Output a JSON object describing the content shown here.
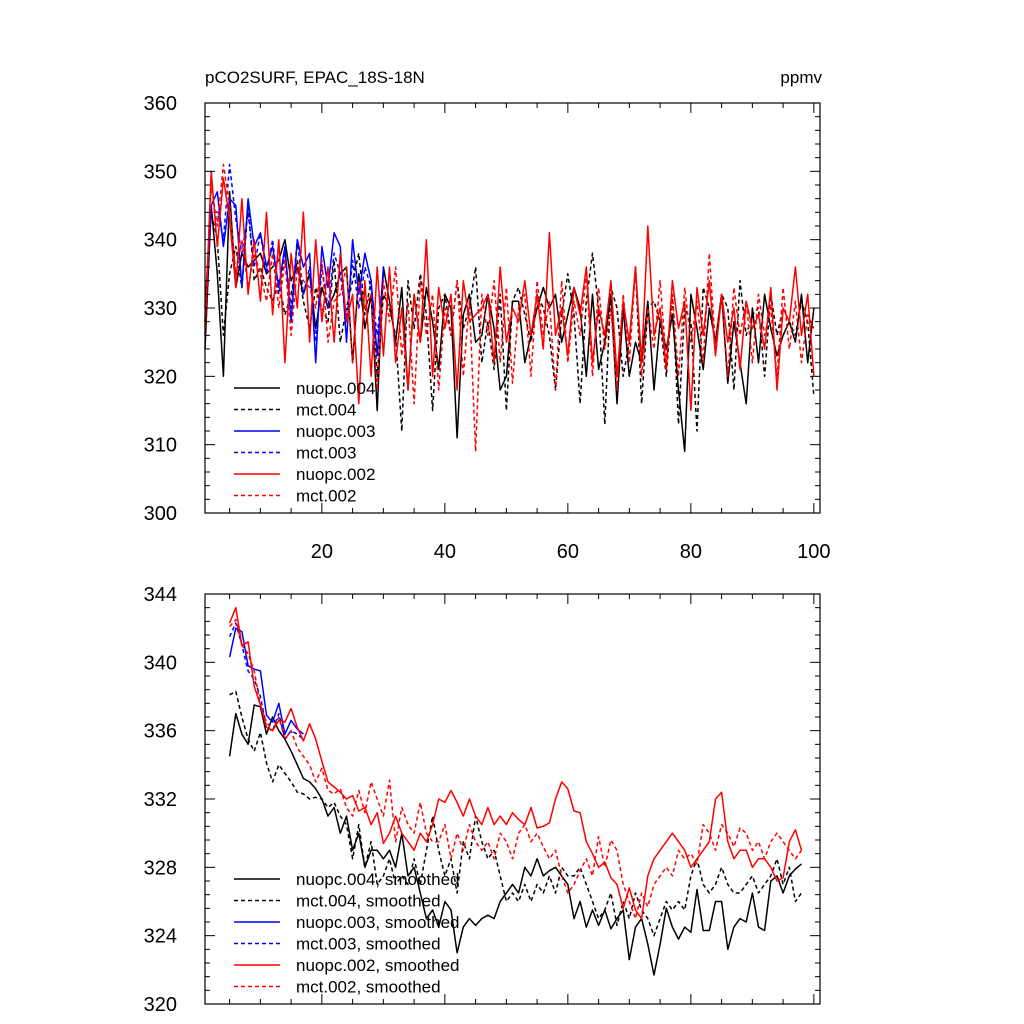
{
  "chart_data": [
    {
      "id": "raw",
      "type": "line",
      "title_left": "pCO2SURF, EPAC_18S-18N",
      "title_right": "ppmv",
      "xlim": [
        1,
        101
      ],
      "ylim": [
        300,
        360
      ],
      "xticks": [
        20,
        40,
        60,
        80,
        100
      ],
      "yticks": [
        300,
        310,
        320,
        330,
        340,
        350,
        360
      ],
      "x_tick_labels_shown": true,
      "legend_position": "bottom-left",
      "series": [
        {
          "name": "nuopc.004",
          "color": "#000000",
          "dash": "solid",
          "x_start": 1,
          "values": [
            324,
            345,
            335,
            320,
            347,
            333,
            338,
            336,
            337,
            338,
            335,
            336,
            337,
            340,
            334,
            336,
            332,
            335,
            327,
            333,
            330,
            332,
            335,
            336,
            322,
            335,
            327,
            332,
            315,
            336,
            331,
            325,
            333,
            318,
            332,
            325,
            333,
            328,
            321,
            332,
            330,
            311,
            329,
            332,
            325,
            326,
            332,
            327,
            318,
            320,
            331,
            331,
            322,
            326,
            330,
            333,
            330,
            332,
            325,
            329,
            333,
            330,
            320,
            332,
            321,
            325,
            332,
            316,
            330,
            320,
            325,
            322,
            331,
            318,
            328,
            324,
            329,
            318,
            309,
            332,
            327,
            321,
            330,
            325,
            332,
            319,
            328,
            322,
            316,
            330,
            322,
            332,
            327,
            323,
            326,
            328,
            325,
            332,
            322,
            330
          ]
        },
        {
          "name": "mct.004",
          "color": "#000000",
          "dash": "dashed",
          "x_start": 1,
          "values": [
            328,
            344,
            340,
            326,
            335,
            339,
            333,
            345,
            334,
            336,
            333,
            331,
            334,
            329,
            332,
            337,
            331,
            327,
            333,
            330,
            328,
            337,
            325,
            330,
            334,
            338,
            329,
            334,
            320,
            332,
            330,
            326,
            312,
            334,
            327,
            335,
            329,
            315,
            330,
            332,
            326,
            334,
            327,
            330,
            336,
            322,
            328,
            321,
            332,
            315,
            331,
            333,
            329,
            325,
            332,
            330,
            326,
            318,
            329,
            335,
            329,
            316,
            331,
            338,
            330,
            313,
            333,
            330,
            320,
            325,
            336,
            316,
            330,
            331,
            328,
            320,
            332,
            313,
            330,
            328,
            312,
            333,
            330,
            325,
            332,
            330,
            318,
            334,
            326,
            329,
            330,
            320,
            332,
            326,
            330,
            328,
            326,
            331,
            328,
            317
          ]
        },
        {
          "name": "nuopc.003",
          "color": "#0000FF",
          "dash": "solid",
          "x_start": 1,
          "values": [
            330,
            345,
            347,
            339,
            346,
            345,
            333,
            346,
            339,
            341,
            336,
            339,
            333,
            339,
            328,
            340,
            336,
            338,
            322,
            339,
            333,
            341,
            339,
            325,
            340,
            332,
            338,
            334,
            323,
            336
          ]
        },
        {
          "name": "mct.003",
          "color": "#0000FF",
          "dash": "dashed",
          "x_start": 1,
          "values": [
            328,
            344,
            344,
            340,
            351,
            343,
            338,
            344,
            336,
            341,
            335,
            340,
            332,
            338,
            330,
            340,
            332,
            336,
            325,
            336,
            330,
            338,
            335,
            328,
            337,
            330,
            336,
            333,
            326,
            335
          ]
        },
        {
          "name": "nuopc.002",
          "color": "#FF0000",
          "dash": "solid",
          "x_start": 1,
          "values": [
            327,
            350,
            339,
            349,
            343,
            333,
            346,
            332,
            340,
            331,
            344,
            329,
            340,
            322,
            338,
            330,
            344,
            325,
            340,
            328,
            336,
            325,
            338,
            328,
            332,
            316,
            334,
            320,
            336,
            323,
            336,
            322,
            330,
            318,
            332,
            325,
            340,
            320,
            333,
            327,
            332,
            318,
            334,
            328,
            329,
            330,
            332,
            322,
            336,
            325,
            330,
            328,
            334,
            326,
            332,
            324,
            341,
            326,
            330,
            323,
            333,
            329,
            336,
            322,
            330,
            326,
            334,
            320,
            331,
            325,
            336,
            322,
            342,
            326,
            330,
            321,
            334,
            327,
            331,
            315,
            333,
            326,
            334,
            323,
            332,
            325,
            330,
            321,
            331,
            327,
            329,
            324,
            333,
            318,
            330,
            328,
            336,
            326,
            332,
            320
          ]
        },
        {
          "name": "mct.002",
          "color": "#FF0000",
          "dash": "dashed",
          "x_start": 1,
          "values": [
            326,
            348,
            342,
            351,
            345,
            335,
            340,
            333,
            338,
            335,
            331,
            338,
            330,
            337,
            326,
            336,
            334,
            333,
            330,
            337,
            325,
            331,
            332,
            336,
            322,
            334,
            330,
            332,
            318,
            334,
            328,
            336,
            323,
            331,
            316,
            334,
            326,
            332,
            318,
            330,
            326,
            334,
            320,
            331,
            309,
            332,
            326,
            334,
            322,
            333,
            319,
            330,
            332,
            320,
            334,
            326,
            331,
            318,
            334,
            322,
            331,
            326,
            335,
            320,
            333,
            324,
            330,
            318,
            332,
            322,
            336,
            320,
            330,
            324,
            334,
            322,
            332,
            320,
            333,
            325,
            331,
            322,
            338,
            324,
            332,
            320,
            333,
            326,
            331,
            322,
            332,
            326,
            330,
            320,
            333,
            324,
            331,
            322,
            329,
            327
          ]
        }
      ],
      "legend": [
        "nuopc.004",
        "mct.004",
        "nuopc.003",
        "mct.003",
        "nuopc.002",
        "mct.002"
      ]
    },
    {
      "id": "smoothed",
      "type": "line",
      "xlim": [
        1,
        101
      ],
      "ylim": [
        320,
        344
      ],
      "xticks": [
        20,
        40,
        60,
        80,
        100
      ],
      "yticks": [
        320,
        324,
        328,
        332,
        336,
        340,
        344
      ],
      "x_tick_labels_shown": false,
      "legend_position": "bottom-left",
      "series": [
        {
          "name": "nuopc.004, smoothed",
          "color": "#000000",
          "dash": "solid",
          "x_start": 5,
          "values": [
            334.5,
            337.0,
            335.8,
            335.2,
            337.5,
            337.4,
            335.8,
            336.8,
            336.0,
            335.5,
            334.8,
            334.0,
            333.2,
            333.0,
            332.6,
            332.0,
            331.0,
            331.5,
            330.0,
            331.0,
            329.0,
            330.0,
            328.0,
            329.0,
            329.0,
            328.5,
            329.0,
            328.0,
            330.0,
            327.5,
            328.0,
            326.5,
            325.0,
            325.5,
            324.5,
            326.0,
            325.5,
            323.0,
            324.5,
            325.0,
            324.6,
            325.0,
            325.2,
            325.0,
            326.0,
            326.5,
            327.0,
            326.5,
            328.0,
            327.5,
            328.5,
            327.5,
            327.8,
            328.0,
            327.5,
            327.0,
            325.0,
            326.0,
            324.5,
            325.5,
            324.6,
            325.5,
            324.4,
            325.0,
            325.5,
            322.6,
            324.5,
            325.0,
            323.5,
            321.7,
            323.5,
            325.6,
            324.5,
            323.8,
            324.5,
            324.2,
            326.7,
            324.3,
            324.3,
            326.0,
            326.0,
            323.2,
            324.5,
            325.0,
            324.8,
            326.5,
            324.5,
            324.3,
            327.2,
            327.5,
            326.5,
            327.5,
            327.9,
            328.2
          ]
        },
        {
          "name": "mct.004, smoothed",
          "color": "#000000",
          "dash": "dashed",
          "x_start": 5,
          "values": [
            338.1,
            338.3,
            336.8,
            335.5,
            334.8,
            335.9,
            334.1,
            333.0,
            334.0,
            333.5,
            333.0,
            332.4,
            332.3,
            332.0,
            332.1,
            332.0,
            331.5,
            331.8,
            331.0,
            330.5,
            328.5,
            330.5,
            328.0,
            329.5,
            327.0,
            327.5,
            328.5,
            327.0,
            327.5,
            327.0,
            328.5,
            327.0,
            329.0,
            331.0,
            329.0,
            327.5,
            328.5,
            326.5,
            329.5,
            328.5,
            331.0,
            329.5,
            328.5,
            329.0,
            327.5,
            326.0,
            326.5,
            326.0,
            327.0,
            326.0,
            327.0,
            326.5,
            327.5,
            326.5,
            328.0,
            327.5,
            327.5,
            328.0,
            327.0,
            326.0,
            325.0,
            325.5,
            326.5,
            324.6,
            326.0,
            325.0,
            326.5,
            325.5,
            325.0,
            324.0,
            325.0,
            326.0,
            325.5,
            326.0,
            325.5,
            327.5,
            328.5,
            327.0,
            326.5,
            327.0,
            328.0,
            327.0,
            326.5,
            326.5,
            327.0,
            327.5,
            326.5,
            327.0,
            327.5,
            328.5,
            327.0,
            328.0,
            326.0,
            326.5
          ]
        },
        {
          "name": "nuopc.003, smoothed",
          "color": "#0000FF",
          "dash": "solid",
          "x_start": 5,
          "values": [
            340.3,
            342.0,
            341.8,
            339.8,
            339.6,
            339.5,
            336.9,
            336.5,
            337.6,
            335.8,
            336.6,
            336.1,
            335.8
          ]
        },
        {
          "name": "mct.003, smoothed",
          "color": "#0000FF",
          "dash": "dashed",
          "x_start": 5,
          "values": [
            341.5,
            342.3,
            341.0,
            339.5,
            339.0,
            338.0,
            336.2,
            336.0,
            337.0,
            335.5,
            336.0,
            335.8,
            335.5
          ]
        },
        {
          "name": "nuopc.002, smoothed",
          "color": "#FF0000",
          "dash": "solid",
          "x_start": 5,
          "values": [
            342.3,
            343.2,
            341.0,
            341.2,
            338.6,
            337.5,
            336.2,
            336.0,
            336.6,
            336.5,
            337.3,
            336.2,
            335.4,
            336.4,
            335.5,
            334.2,
            333.0,
            332.7,
            332.4,
            332.0,
            332.2,
            331.3,
            331.5,
            330.5,
            331.2,
            329.4,
            330.0,
            331.0,
            330.0,
            329.5,
            329.0,
            330.0,
            329.5,
            330.5,
            332.0,
            331.8,
            332.5,
            331.8,
            331.0,
            332.0,
            331.0,
            330.5,
            331.5,
            330.5,
            331.0,
            330.5,
            331.2,
            330.8,
            330.5,
            331.5,
            330.3,
            330.4,
            330.6,
            332.0,
            333.0,
            332.6,
            331.3,
            331.2,
            329.5,
            328.8,
            328.0,
            328.3,
            327.4,
            327.0,
            325.6,
            326.8,
            325.5,
            325.0,
            327.5,
            328.5,
            329.0,
            329.5,
            330.0,
            329.5,
            329.0,
            328.0,
            328.5,
            329.0,
            329.5,
            332.0,
            332.4,
            329.5,
            328.5,
            329.0,
            329.0,
            328.0,
            328.5,
            328.5,
            328.0,
            327.2,
            327.4,
            329.5,
            330.2,
            329.0
          ]
        },
        {
          "name": "mct.002, smoothed",
          "color": "#FF0000",
          "dash": "dashed",
          "x_start": 5,
          "values": [
            342.1,
            342.5,
            341.0,
            340.5,
            339.5,
            337.5,
            336.5,
            336.0,
            336.8,
            335.5,
            336.0,
            335.0,
            334.5,
            334.0,
            333.0,
            333.8,
            332.5,
            332.3,
            332.6,
            331.5,
            331.0,
            332.5,
            331.2,
            333.0,
            332.0,
            331.0,
            333.1,
            329.5,
            331.5,
            330.5,
            330.0,
            331.8,
            330.0,
            329.5,
            329.5,
            330.5,
            328.5,
            330.0,
            329.0,
            330.5,
            329.5,
            329.0,
            329.5,
            328.5,
            330.0,
            329.5,
            328.5,
            330.0,
            330.5,
            329.5,
            330.0,
            329.2,
            328.5,
            329.0,
            327.5,
            326.5,
            327.0,
            327.8,
            328.5,
            327.5,
            329.8,
            328.0,
            329.6,
            329.0,
            327.0,
            326.0,
            325.0,
            326.5,
            325.7,
            327.0,
            327.5,
            328.0,
            327.5,
            329.0,
            328.5,
            328.8,
            328.2,
            330.5,
            330.0,
            329.0,
            330.5,
            330.0,
            329.2,
            330.3,
            330.0,
            329.0,
            329.5,
            328.5,
            329.5,
            330.0,
            329.5,
            329.0,
            328.5,
            329.0
          ]
        }
      ],
      "legend": [
        "nuopc.004, smoothed",
        "mct.004, smoothed",
        "nuopc.003, smoothed",
        "mct.003, smoothed",
        "nuopc.002, smoothed",
        "mct.002, smoothed"
      ]
    }
  ]
}
